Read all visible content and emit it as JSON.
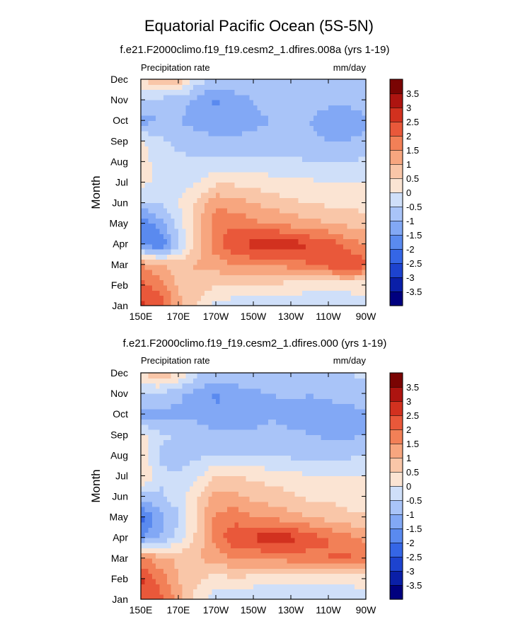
{
  "figure_title": "Equatorial Pacific Ocean (5S-5N)",
  "colors": {
    "levels_palette": [
      "#00007f",
      "#0a1fa8",
      "#1d43cf",
      "#3566e6",
      "#5a8aef",
      "#82a8f5",
      "#a9c4f8",
      "#cfdff9",
      "#fbe4d3",
      "#f9c6a8",
      "#f7a67f",
      "#f28057",
      "#e9583a",
      "#d2311f",
      "#ad1410",
      "#7a0403"
    ]
  },
  "chart_data": [
    {
      "type": "heatmap",
      "title": "f.e21.F2000climo.f19_f19.cesm2_1.dfires.008a (yrs 1-19)",
      "left_label": "Precipitation rate",
      "right_label": "mm/day",
      "ylabel": "Month",
      "xlabel": "",
      "x_ticks": [
        "150E",
        "170E",
        "170W",
        "150W",
        "130W",
        "110W",
        "90W"
      ],
      "y_ticks": [
        "Jan",
        "Feb",
        "Mar",
        "Apr",
        "May",
        "Jun",
        "Jul",
        "Aug",
        "Sep",
        "Oct",
        "Nov",
        "Dec"
      ],
      "colorbar_labels": [
        "3.5",
        "3",
        "2.5",
        "2",
        "1.5",
        "1",
        "0.5",
        "0",
        "-0.5",
        "-1",
        "-1.5",
        "-2",
        "-2.5",
        "-3",
        "-3.5"
      ],
      "colorbar_levels": [
        -3.5,
        -3,
        -2.5,
        -2,
        -1.5,
        -1,
        -0.5,
        0,
        0.5,
        1,
        1.5,
        2,
        2.5,
        3,
        3.5
      ],
      "x_lon": [
        150,
        160,
        170,
        180,
        190,
        200,
        210,
        220,
        230,
        240,
        250,
        260,
        270
      ],
      "values": [
        [
          2.6,
          2.3,
          1.2,
          0.5,
          -0.2,
          -0.4,
          -0.5,
          -0.5,
          -0.4,
          -0.4,
          -0.3,
          -0.2,
          -0.2
        ],
        [
          2.2,
          1.8,
          0.9,
          0.8,
          0.5,
          0.6,
          0.5,
          0.4,
          0.3,
          0.2,
          0.1,
          0.1,
          0.2
        ],
        [
          1.5,
          1.1,
          0.7,
          1.1,
          1.2,
          1.6,
          1.6,
          1.5,
          1.7,
          2.0,
          2.3,
          2.6,
          2.2
        ],
        [
          -1.6,
          -2.1,
          -0.6,
          0.7,
          1.8,
          2.4,
          2.7,
          3.0,
          2.8,
          2.5,
          2.3,
          1.8,
          1.4
        ],
        [
          -2.0,
          -1.2,
          -0.3,
          0.8,
          1.8,
          1.9,
          1.6,
          1.5,
          1.3,
          1.2,
          1.0,
          0.9,
          0.8
        ],
        [
          -0.6,
          -0.5,
          0.0,
          0.6,
          1.4,
          1.2,
          1.0,
          0.8,
          0.6,
          0.5,
          0.4,
          0.3,
          0.3
        ],
        [
          0.2,
          -0.2,
          -0.3,
          0.0,
          0.4,
          0.4,
          0.3,
          0.2,
          0.1,
          0.1,
          0.0,
          0.0,
          0.0
        ],
        [
          0.3,
          -0.3,
          -0.4,
          -0.4,
          -0.3,
          -0.3,
          -0.3,
          -0.4,
          -0.4,
          -0.5,
          -0.5,
          -0.5,
          -0.4
        ],
        [
          0.1,
          -0.4,
          -0.6,
          -0.8,
          -0.9,
          -0.9,
          -0.9,
          -0.8,
          -0.8,
          -0.9,
          -1.0,
          -1.0,
          -0.9
        ],
        [
          -1.2,
          -1.0,
          -1.0,
          -1.2,
          -1.3,
          -1.2,
          -1.1,
          -1.0,
          -1.0,
          -1.0,
          -1.2,
          -1.2,
          -1.1
        ],
        [
          -0.5,
          -0.7,
          -0.8,
          -1.1,
          -1.6,
          -1.2,
          -1.0,
          -0.8,
          -0.7,
          -0.8,
          -0.9,
          -0.9,
          -0.8
        ],
        [
          0.3,
          1.2,
          0.8,
          -0.3,
          -0.6,
          -0.7,
          -0.6,
          -0.6,
          -0.5,
          -0.5,
          -0.6,
          -0.6,
          -0.5
        ]
      ]
    },
    {
      "type": "heatmap",
      "title": "f.e21.F2000climo.f19_f19.cesm2_1.dfires.000 (yrs 1-19)",
      "left_label": "Precipitation rate",
      "right_label": "mm/day",
      "ylabel": "Month",
      "xlabel": "",
      "x_ticks": [
        "150E",
        "170E",
        "170W",
        "150W",
        "130W",
        "110W",
        "90W"
      ],
      "y_ticks": [
        "Jan",
        "Feb",
        "Mar",
        "Apr",
        "May",
        "Jun",
        "Jul",
        "Aug",
        "Sep",
        "Oct",
        "Nov",
        "Dec"
      ],
      "colorbar_labels": [
        "3.5",
        "3",
        "2.5",
        "2",
        "1.5",
        "1",
        "0.5",
        "0",
        "-0.5",
        "-1",
        "-1.5",
        "-2",
        "-2.5",
        "-3",
        "-3.5"
      ],
      "colorbar_levels": [
        -3.5,
        -3,
        -2.5,
        -2,
        -1.5,
        -1,
        -0.5,
        0,
        0.5,
        1,
        1.5,
        2,
        2.5,
        3,
        3.5
      ],
      "x_lon": [
        150,
        160,
        170,
        180,
        190,
        200,
        210,
        220,
        230,
        240,
        250,
        260,
        270
      ],
      "values": [
        [
          2.4,
          2.2,
          1.3,
          0.3,
          -0.3,
          -0.4,
          -0.5,
          -0.5,
          -0.4,
          -0.4,
          -0.3,
          -0.3,
          -0.2
        ],
        [
          2.6,
          1.8,
          1.0,
          0.6,
          0.3,
          0.4,
          0.3,
          0.2,
          0.2,
          0.1,
          0.1,
          0.1,
          0.2
        ],
        [
          1.6,
          1.2,
          0.9,
          1.0,
          1.2,
          1.5,
          1.6,
          1.6,
          1.7,
          1.8,
          2.0,
          2.1,
          1.8
        ],
        [
          -1.5,
          -1.0,
          -0.3,
          0.6,
          1.7,
          2.4,
          2.6,
          2.8,
          2.7,
          2.3,
          2.0,
          1.7,
          1.4
        ],
        [
          -2.2,
          -1.2,
          -0.6,
          0.6,
          1.6,
          1.8,
          1.5,
          1.4,
          1.2,
          1.0,
          0.8,
          0.6,
          0.6
        ],
        [
          -0.7,
          -0.6,
          -0.2,
          0.5,
          1.2,
          1.1,
          0.9,
          0.7,
          0.6,
          0.4,
          0.4,
          0.3,
          0.2
        ],
        [
          0.6,
          -0.4,
          -0.4,
          -0.1,
          0.5,
          0.5,
          0.4,
          0.3,
          0.2,
          0.0,
          0.0,
          0.0,
          0.0
        ],
        [
          0.4,
          -0.6,
          -0.8,
          -0.6,
          -0.5,
          -0.5,
          -0.5,
          -0.6,
          -0.6,
          -0.7,
          -0.6,
          -0.6,
          -0.5
        ],
        [
          0.2,
          -0.4,
          -0.5,
          -0.7,
          -0.9,
          -0.9,
          -0.9,
          -0.8,
          -0.9,
          -1.0,
          -1.1,
          -1.1,
          -1.0
        ],
        [
          -1.3,
          -1.2,
          -1.1,
          -1.2,
          -1.4,
          -1.3,
          -1.2,
          -1.1,
          -1.2,
          -1.1,
          -1.2,
          -1.2,
          -1.1
        ],
        [
          -0.4,
          -0.6,
          -0.9,
          -1.2,
          -1.6,
          -1.3,
          -1.1,
          -1.0,
          -0.9,
          -1.0,
          -0.9,
          -0.8,
          -0.7
        ],
        [
          0.3,
          1.1,
          0.5,
          -0.4,
          -0.6,
          -0.6,
          -0.6,
          -0.6,
          -0.5,
          -0.5,
          -0.6,
          -0.5,
          -0.4
        ]
      ]
    }
  ]
}
